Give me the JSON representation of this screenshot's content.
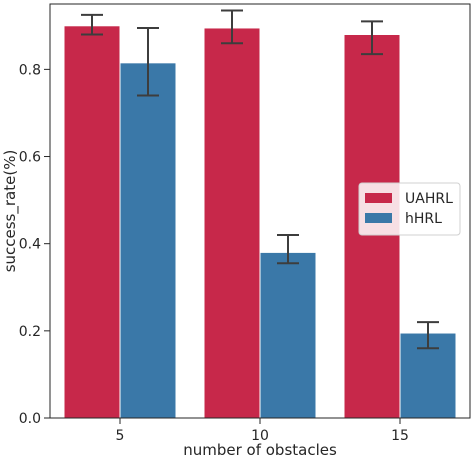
{
  "chart_data": {
    "type": "bar",
    "xlabel": "number of obstacles",
    "ylabel": "success_rate(%)",
    "categories": [
      "5",
      "10",
      "15"
    ],
    "ylim": [
      0,
      0.95
    ],
    "yticks": [
      "0.0",
      "0.2",
      "0.4",
      "0.6",
      "0.8"
    ],
    "grid": false,
    "legend_position": "center-right",
    "series": [
      {
        "name": "UAHRL",
        "color": "#c7284a",
        "values": [
          0.9,
          0.895,
          0.88
        ],
        "error_low": [
          0.88,
          0.86,
          0.835
        ],
        "error_high": [
          0.925,
          0.935,
          0.91
        ]
      },
      {
        "name": "hHRL",
        "color": "#3a78a8",
        "values": [
          0.815,
          0.38,
          0.195
        ],
        "error_low": [
          0.74,
          0.355,
          0.16
        ],
        "error_high": [
          0.895,
          0.42,
          0.22
        ]
      }
    ]
  }
}
